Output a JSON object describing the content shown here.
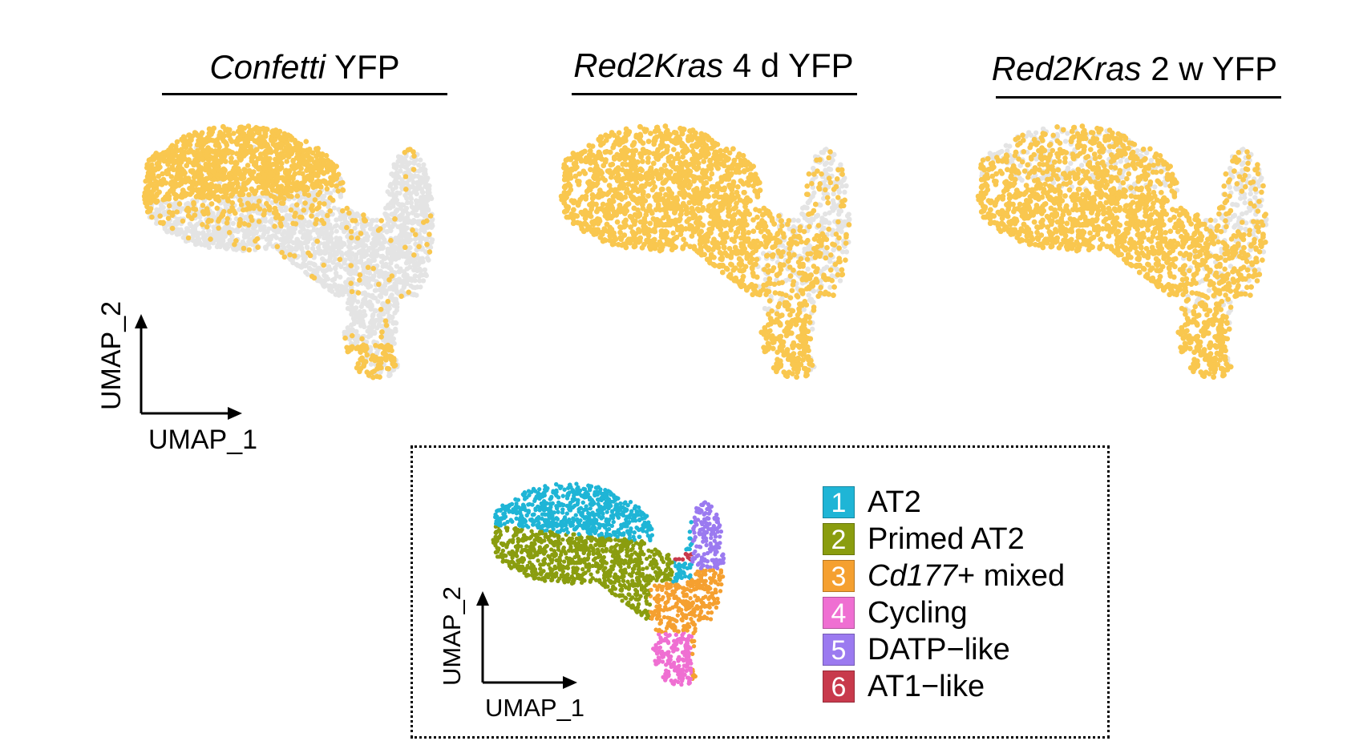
{
  "panels": [
    {
      "title_italic": "Confetti",
      "title_rest": " YFP",
      "highlight": "upper"
    },
    {
      "title_italic": "Red2Kras",
      "title_rest": " 4 d YFP",
      "highlight": "broad"
    },
    {
      "title_italic": "Red2Kras",
      "title_rest": " 2 w YFP",
      "highlight": "lower"
    }
  ],
  "axes": {
    "x_label": "UMAP_1",
    "y_label": "UMAP_2"
  },
  "colors": {
    "highlight": "#f9c74f",
    "background_cells": "#e4e4e4"
  },
  "legend": [
    {
      "num": "1",
      "label_italic": "",
      "label": "AT2",
      "color": "#1fb5d6"
    },
    {
      "num": "2",
      "label_italic": "",
      "label": "Primed AT2",
      "color": "#8a9d0f"
    },
    {
      "num": "3",
      "label_italic": "Cd177",
      "label": "+ mixed",
      "color": "#f5a030"
    },
    {
      "num": "4",
      "label_italic": "",
      "label": "Cycling",
      "color": "#ef6fd2"
    },
    {
      "num": "5",
      "label_italic": "",
      "label": "DATP−like",
      "color": "#9b7af0"
    },
    {
      "num": "6",
      "label_italic": "",
      "label": "AT1−like",
      "color": "#c83a4c"
    }
  ]
}
